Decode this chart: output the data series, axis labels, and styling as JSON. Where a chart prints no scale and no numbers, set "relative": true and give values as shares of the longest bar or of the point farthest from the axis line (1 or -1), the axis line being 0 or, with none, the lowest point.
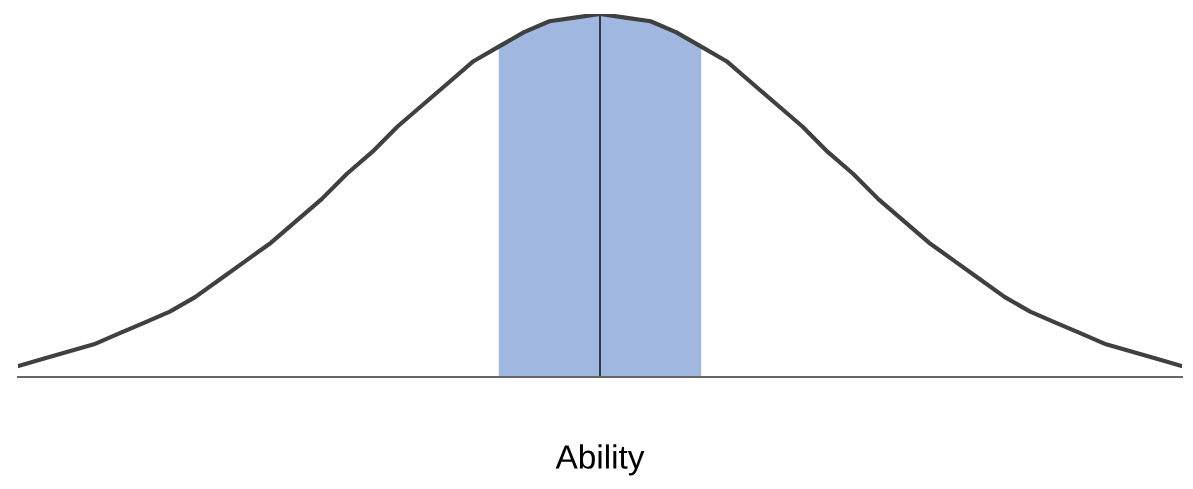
{
  "chart_data": {
    "type": "line",
    "relative": true,
    "xlabel": "Ability",
    "categories": [
      null,
      null,
      null,
      null,
      null,
      null,
      null,
      null,
      null,
      null,
      null,
      null,
      null,
      null,
      null,
      null,
      null,
      null,
      null,
      null,
      null,
      null,
      null,
      null,
      null,
      null,
      null,
      null,
      null,
      null,
      null,
      null,
      null,
      null,
      null,
      null,
      null,
      null,
      null,
      null,
      null,
      null,
      null,
      null,
      null,
      null,
      null
    ],
    "series": [
      {
        "type": "area",
        "color": "#a0b8e0",
        "values": [
          null,
          null,
          null,
          null,
          null,
          null,
          null,
          null,
          null,
          null,
          null,
          null,
          null,
          null,
          null,
          null,
          null,
          null,
          null,
          0.91,
          0.95,
          0.98,
          0.99,
          1.0,
          0.99,
          0.98,
          0.95,
          0.91,
          null,
          null,
          null,
          null,
          null,
          null,
          null,
          null,
          null,
          null,
          null,
          null,
          null,
          null,
          null,
          null,
          null,
          null,
          null
        ]
      },
      {
        "color": "#404040",
        "values": [
          0.03,
          0.05,
          0.07,
          0.09,
          0.12,
          0.15,
          0.18,
          0.22,
          0.27,
          0.32,
          0.37,
          0.43,
          0.49,
          0.56,
          0.62,
          0.69,
          0.75,
          0.81,
          0.87,
          0.91,
          0.95,
          0.98,
          0.99,
          1.0,
          0.99,
          0.98,
          0.95,
          0.91,
          0.87,
          0.81,
          0.75,
          0.69,
          0.62,
          0.56,
          0.49,
          0.43,
          0.37,
          0.32,
          0.27,
          0.22,
          0.18,
          0.15,
          0.12,
          0.09,
          0.07,
          0.05,
          0.03
        ]
      }
    ]
  }
}
